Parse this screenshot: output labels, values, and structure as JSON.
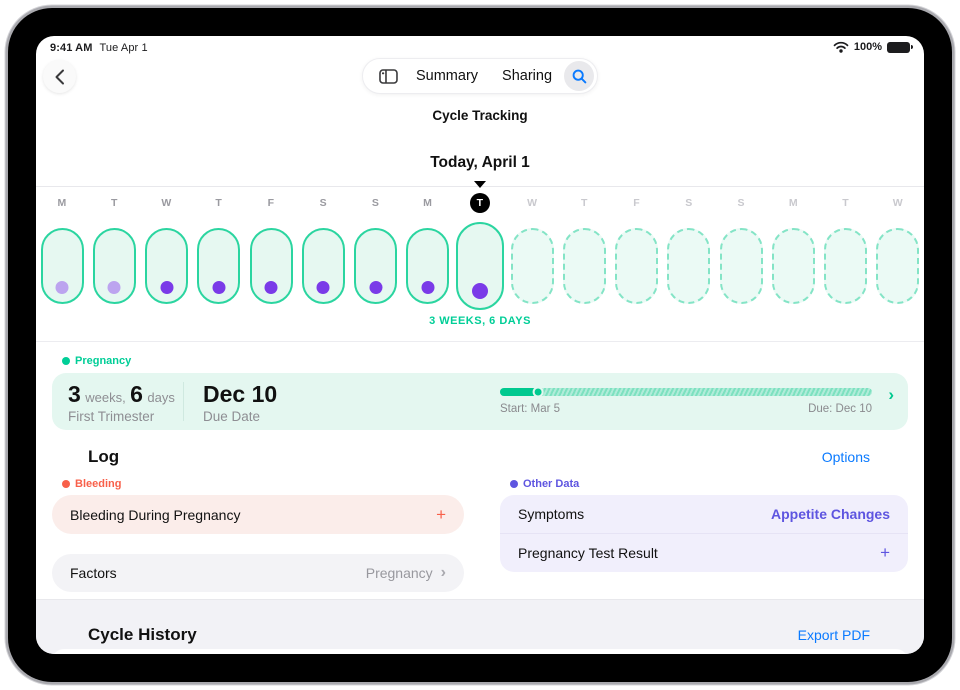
{
  "status_bar": {
    "time": "9:41 AM",
    "date": "Tue Apr 1",
    "battery_percent": "100%"
  },
  "nav": {
    "summary_label": "Summary",
    "sharing_label": "Sharing"
  },
  "page": {
    "title": "Cycle Tracking",
    "today_header": "Today, April 1"
  },
  "timeline": {
    "caption": "3 WEEKS, 6 DAYS",
    "days": [
      {
        "letter": "M",
        "oval": "solid",
        "dot": "light"
      },
      {
        "letter": "T",
        "oval": "solid",
        "dot": "light"
      },
      {
        "letter": "W",
        "oval": "solid",
        "dot": "dark"
      },
      {
        "letter": "T",
        "oval": "solid",
        "dot": "dark"
      },
      {
        "letter": "F",
        "oval": "solid",
        "dot": "dark"
      },
      {
        "letter": "S",
        "oval": "solid",
        "dot": "dark"
      },
      {
        "letter": "S",
        "oval": "solid",
        "dot": "dark"
      },
      {
        "letter": "M",
        "oval": "solid",
        "dot": "dark"
      },
      {
        "letter": "T",
        "oval": "today",
        "dot": "dark",
        "today": true
      },
      {
        "letter": "W",
        "oval": "dashed",
        "dot": "none"
      },
      {
        "letter": "T",
        "oval": "dashed",
        "dot": "none"
      },
      {
        "letter": "F",
        "oval": "dashed",
        "dot": "none"
      },
      {
        "letter": "S",
        "oval": "dashed",
        "dot": "none"
      },
      {
        "letter": "S",
        "oval": "dashed",
        "dot": "none"
      },
      {
        "letter": "M",
        "oval": "dashed",
        "dot": "none"
      },
      {
        "letter": "T",
        "oval": "dashed",
        "dot": "none"
      },
      {
        "letter": "W",
        "oval": "dashed",
        "dot": "none"
      }
    ]
  },
  "pregnancy": {
    "section_label": "Pregnancy",
    "weeks_value": "3",
    "weeks_unit": "weeks,",
    "days_value": "6",
    "days_unit": "days",
    "stage": "First Trimester",
    "due_date": "Dec 10",
    "due_caption": "Due Date",
    "progress": {
      "percent": 10,
      "start_label": "Start: Mar 5",
      "due_label": "Due: Dec 10"
    }
  },
  "log": {
    "title": "Log",
    "options_label": "Options",
    "bleeding_section_label": "Bleeding",
    "bleeding_item": "Bleeding During Pregnancy",
    "bleeding_add": "+",
    "factors_name": "Factors",
    "factors_value": "Pregnancy",
    "other_section_label": "Other Data",
    "other_rows": [
      {
        "name": "Symptoms",
        "value": "Appetite Changes",
        "kind": "text"
      },
      {
        "name": "Pregnancy Test Result",
        "value": "+",
        "kind": "plus"
      }
    ]
  },
  "history": {
    "title": "Cycle History",
    "export_label": "Export PDF"
  },
  "colors": {
    "teal": "#00ce97",
    "teal_fill": "#e4f7f0",
    "purple_dot": "#7a3be8",
    "lavender_dot": "#bca4ef",
    "red": "#f8604a",
    "violet": "#5e55e0",
    "blue": "#0a7aff"
  }
}
